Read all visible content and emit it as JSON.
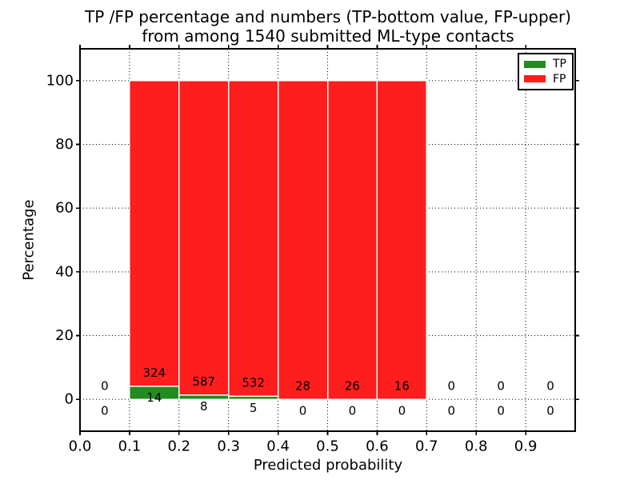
{
  "title": {
    "line1": "TP /FP percentage and numbers (TP-bottom value, FP-upper)",
    "line2": "from among 1540 submitted ML-type contacts"
  },
  "chart_data": {
    "type": "bar",
    "stacked": true,
    "normalized_to_percent": true,
    "xlabel": "Predicted probability",
    "ylabel": "Percentage",
    "bin_edges": [
      0.0,
      0.1,
      0.2,
      0.3,
      0.4,
      0.5,
      0.6,
      0.7,
      0.8,
      0.9,
      1.0
    ],
    "series": [
      {
        "name": "TP",
        "color": "#228B22",
        "counts": [
          0,
          14,
          8,
          5,
          0,
          0,
          0,
          0,
          0,
          0
        ]
      },
      {
        "name": "FP",
        "color": "#ff1e1e",
        "counts": [
          0,
          324,
          587,
          532,
          28,
          26,
          16,
          0,
          0,
          0
        ]
      }
    ],
    "bar_percentages": {
      "tp_pct": [
        0,
        4.14,
        1.34,
        0.93,
        0,
        0,
        0,
        0,
        0,
        0
      ],
      "fp_pct": [
        0,
        95.86,
        98.66,
        99.07,
        100,
        100,
        100,
        0,
        0,
        0
      ]
    },
    "xticks": [
      "0.0",
      "0.1",
      "0.2",
      "0.3",
      "0.4",
      "0.5",
      "0.6",
      "0.7",
      "0.8",
      "0.9"
    ],
    "yticks": [
      0,
      20,
      40,
      60,
      80,
      100
    ],
    "xlim": [
      0.0,
      1.0
    ],
    "ylim": [
      -10,
      110
    ],
    "grid": "dotted",
    "legend": {
      "position": "upper-right",
      "entries": [
        {
          "label": "TP",
          "color": "#228B22"
        },
        {
          "label": "FP",
          "color": "#ff1e1e"
        }
      ]
    }
  }
}
